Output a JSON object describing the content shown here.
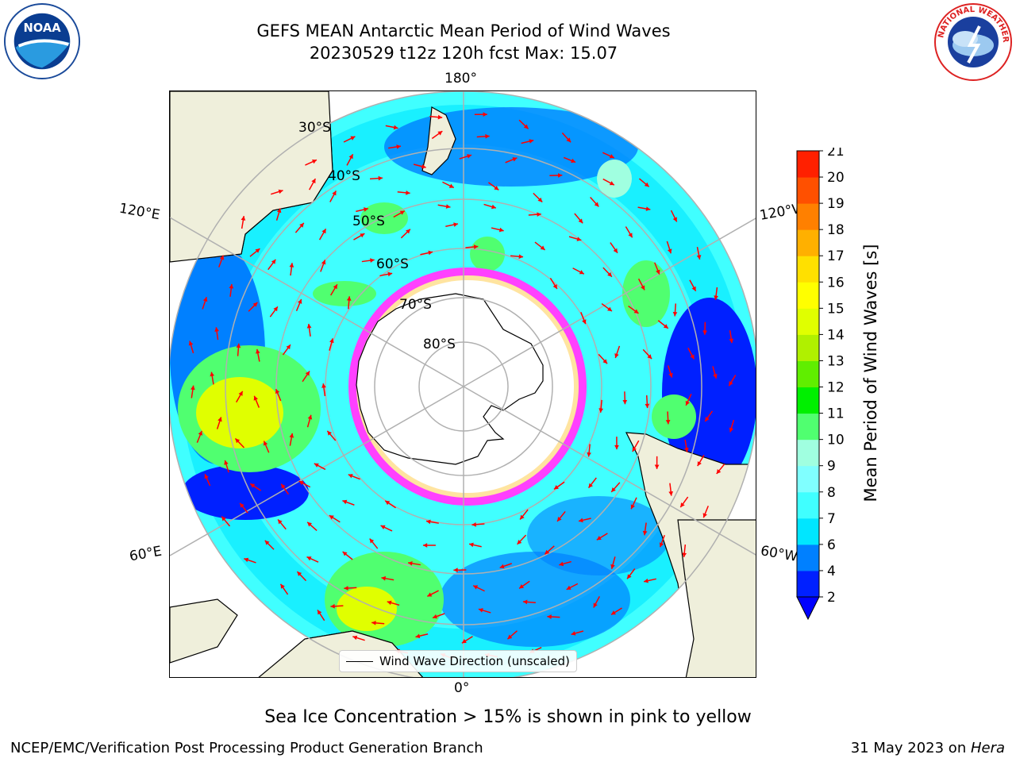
{
  "title": {
    "line1": "GEFS MEAN Antarctic Mean Period of Wind Waves",
    "line2": "20230529 t12z 120h fcst   Max: 15.07"
  },
  "logos": {
    "left": "noaa-logo",
    "right": "nws-logo"
  },
  "longitude_labels": {
    "top": "180°",
    "bottom": "0°",
    "upper_left": "120°E",
    "upper_right": "120°W",
    "lower_left": "60°E",
    "lower_right": "60°W"
  },
  "latitude_labels": [
    "30°S",
    "40°S",
    "50°S",
    "60°S",
    "70°S",
    "80°S"
  ],
  "legend": {
    "label": "Wind Wave Direction (unscaled)"
  },
  "colorbar": {
    "label": "Mean Period of Wind Waves [s]",
    "ticks": [
      "2",
      "4",
      "6",
      "7",
      "8",
      "9",
      "10",
      "11",
      "12",
      "13",
      "14",
      "15",
      "16",
      "17",
      "18",
      "19",
      "20",
      "21"
    ],
    "colors": [
      "#0020ff",
      "#0080ff",
      "#00e6ff",
      "#40ffff",
      "#80ffff",
      "#a0ffe0",
      "#50ff70",
      "#00f000",
      "#60ee00",
      "#b0f000",
      "#e0ff00",
      "#ffff00",
      "#ffe000",
      "#ffb000",
      "#ff8000",
      "#ff5000",
      "#ff2000"
    ],
    "under_color": "#0000ff"
  },
  "footer": {
    "sea_ice_note": "Sea Ice Concentration > 15% is shown in pink to yellow",
    "left": "NCEP/EMC/Verification Post Processing Product Generation Branch",
    "right_date": "31 May 2023 on ",
    "right_machine": "Hera"
  },
  "colors": {
    "land": "#efefdb",
    "ocean_low": "#0000ff",
    "ocean_mid": "#40ffff",
    "ocean_green": "#50ff70",
    "sea_ice": "#ff40ff",
    "arrows": "#ff0000",
    "grid": "#b0b0b0"
  }
}
